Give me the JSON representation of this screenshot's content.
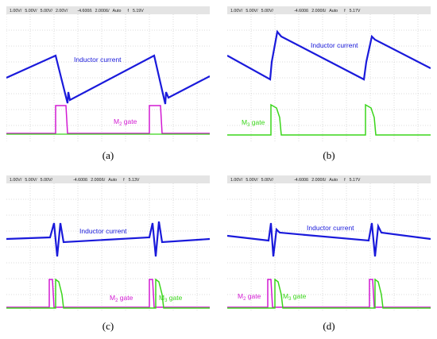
{
  "panels": [
    {
      "caption": "(a)",
      "toolbar": [
        "1.00V/",
        "5.00V/",
        "5.00V/",
        "2.00V/",
        "-4.600ß",
        "2.000ß/",
        "Auto",
        "f",
        "5.19V"
      ],
      "labels": {
        "inductor": "Inductor current",
        "m2_gate": "M",
        "m2_sub": "2",
        "m2_suffix": " gate"
      }
    },
    {
      "caption": "(b)",
      "toolbar": [
        "1.00V/",
        "5.00V/",
        "5.00V/",
        "-4.600ß",
        "2.000ß/",
        "Auto",
        "f",
        "5.17V"
      ],
      "labels": {
        "inductor": "Inductor current",
        "m3_gate": "M",
        "m3_sub": "3",
        "m3_suffix": " gate"
      }
    },
    {
      "caption": "(c)",
      "toolbar": [
        "1.00V/",
        "5.00V/",
        "5.00V/",
        "-4.600ß",
        "2.000ß/",
        "Auto",
        "f",
        "5.13V"
      ],
      "labels": {
        "inductor": "Inductor current",
        "m2_gate": "M",
        "m2_sub": "2",
        "m2_suffix": " gate",
        "m3_gate": "M",
        "m3_sub": "3",
        "m3_suffix": " gate"
      }
    },
    {
      "caption": "(d)",
      "toolbar": [
        "1.00V/",
        "5.00V/",
        "5.00V/",
        "-4.600ß",
        "2.000ß/",
        "Auto",
        "f",
        "5.17V"
      ],
      "labels": {
        "inductor": "Inductor current",
        "m2_gate": "M",
        "m2_sub": "2",
        "m2_suffix": " gate",
        "m3_gate": "M",
        "m3_sub": "3",
        "m3_suffix": " gate"
      }
    }
  ],
  "colors": {
    "inductor": "#1a1adb",
    "m2_gate": "#d21ad2",
    "m3_gate": "#3ad51a",
    "grid": "#b8b8b8",
    "toolbar_bg": "#e4e4e4"
  }
}
